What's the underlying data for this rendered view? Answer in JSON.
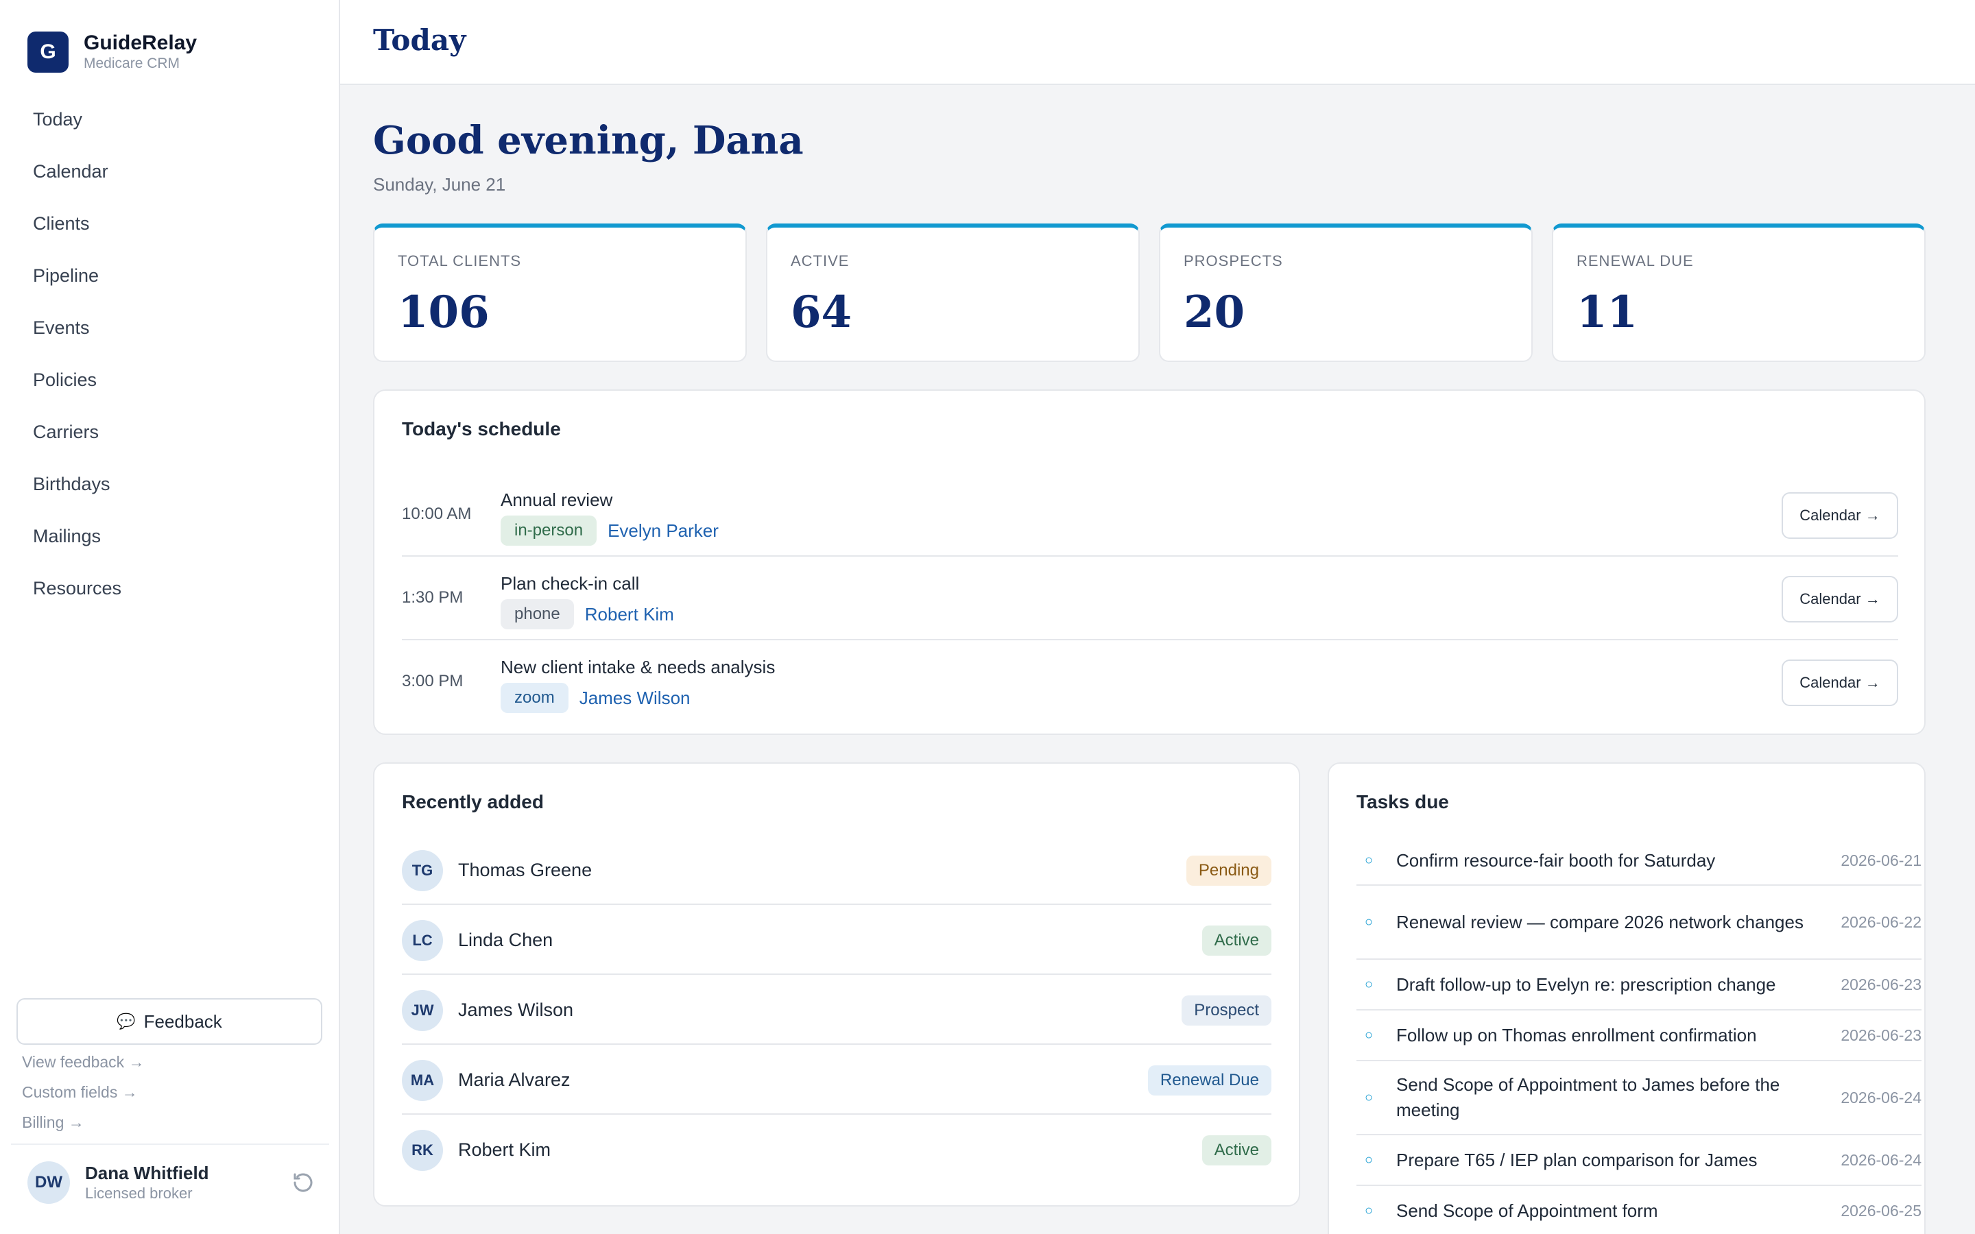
{
  "brand": {
    "logo_letter": "G",
    "name": "GuideRelay",
    "subtitle": "Medicare CRM"
  },
  "nav": [
    "Today",
    "Calendar",
    "Clients",
    "Pipeline",
    "Events",
    "Policies",
    "Carriers",
    "Birthdays",
    "Mailings",
    "Resources"
  ],
  "sidebar_footer": {
    "feedback_label": "Feedback",
    "links": [
      "View feedback →",
      "Custom fields →",
      "Billing →"
    ],
    "user": {
      "initials": "DW",
      "name": "Dana Whitfield",
      "role": "Licensed broker"
    }
  },
  "header": {
    "title": "Today"
  },
  "greeting": "Good evening, Dana",
  "date": "Sunday, June 21",
  "stats": [
    {
      "label": "TOTAL CLIENTS",
      "value": "106"
    },
    {
      "label": "ACTIVE",
      "value": "64"
    },
    {
      "label": "PROSPECTS",
      "value": "20"
    },
    {
      "label": "RENEWAL DUE",
      "value": "11"
    }
  ],
  "schedule": {
    "title": "Today's schedule",
    "items": [
      {
        "time": "10:00 AM",
        "title": "Annual review",
        "type": "in-person",
        "client": "Evelyn Parker",
        "button": "Calendar →"
      },
      {
        "time": "1:30 PM",
        "title": "Plan check-in call",
        "type": "phone",
        "client": "Robert Kim",
        "button": "Calendar →"
      },
      {
        "time": "3:00 PM",
        "title": "New client intake & needs analysis",
        "type": "zoom",
        "client": "James Wilson",
        "button": "Calendar →"
      }
    ]
  },
  "recent": {
    "title": "Recently added",
    "items": [
      {
        "initials": "TG",
        "name": "Thomas Greene",
        "status": "Pending"
      },
      {
        "initials": "LC",
        "name": "Linda Chen",
        "status": "Active"
      },
      {
        "initials": "JW",
        "name": "James Wilson",
        "status": "Prospect"
      },
      {
        "initials": "MA",
        "name": "Maria Alvarez",
        "status": "Renewal Due"
      },
      {
        "initials": "RK",
        "name": "Robert Kim",
        "status": "Active"
      }
    ]
  },
  "tasks": {
    "title": "Tasks due",
    "items": [
      {
        "text": "Confirm resource-fair booth for Saturday",
        "date": "2026-06-21"
      },
      {
        "text": "Renewal review — compare 2026 network changes",
        "date": "2026-06-22"
      },
      {
        "text": "Draft follow-up to Evelyn re: prescription change",
        "date": "2026-06-23"
      },
      {
        "text": "Follow up on Thomas enrollment confirmation",
        "date": "2026-06-23"
      },
      {
        "text": "Send Scope of Appointment to James before the meeting",
        "date": "2026-06-24"
      },
      {
        "text": "Prepare T65 / IEP plan comparison for James",
        "date": "2026-06-24"
      },
      {
        "text": "Send Scope of Appointment form",
        "date": "2026-06-25"
      }
    ]
  },
  "colors": {
    "brand_navy": "#0f2a6e",
    "accent_cyan": "#1199d0",
    "link_blue": "#1f62b0"
  }
}
